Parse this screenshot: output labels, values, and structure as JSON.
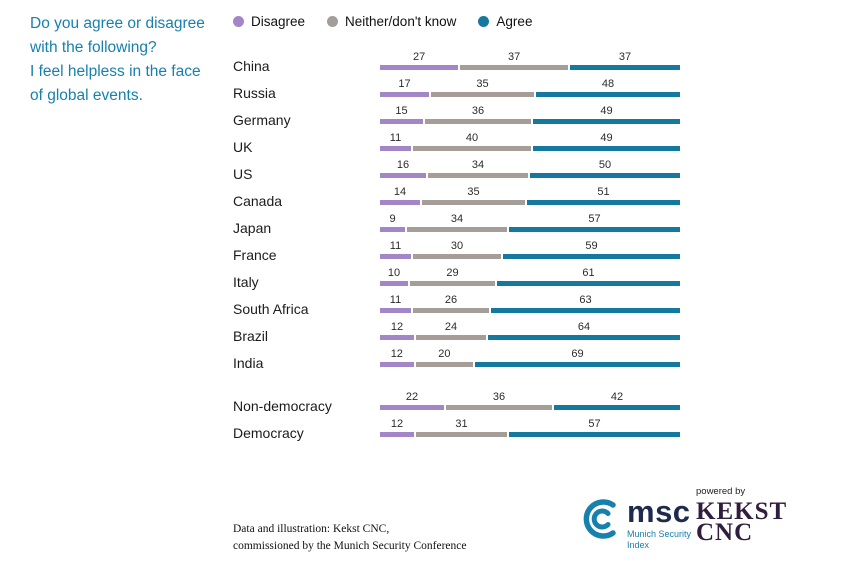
{
  "title": {
    "lines": [
      "Do you agree or disagree",
      "with the following?",
      "I feel helpless in the face",
      "of global events."
    ]
  },
  "legend": [
    {
      "label": "Disagree",
      "color": "#a286c8"
    },
    {
      "label": "Neither/don't know",
      "color": "#a59d97"
    },
    {
      "label": "Agree",
      "color": "#15789e"
    }
  ],
  "chart_data": {
    "type": "bar",
    "variant": "horizontal-stacked",
    "series_names": [
      "Disagree",
      "Neither/don't know",
      "Agree"
    ],
    "series_keys": [
      "disagree",
      "neither",
      "agree"
    ],
    "colors": [
      "#a286c8",
      "#a59d97",
      "#15789e"
    ],
    "xmax": 101,
    "rows": [
      {
        "label": "China",
        "values": [
          27,
          37,
          37
        ]
      },
      {
        "label": "Russia",
        "values": [
          17,
          35,
          48
        ]
      },
      {
        "label": "Germany",
        "values": [
          15,
          36,
          49
        ]
      },
      {
        "label": "UK",
        "values": [
          11,
          40,
          49
        ]
      },
      {
        "label": "US",
        "values": [
          16,
          34,
          50
        ]
      },
      {
        "label": "Canada",
        "values": [
          14,
          35,
          51
        ]
      },
      {
        "label": "Japan",
        "values": [
          9,
          34,
          57
        ]
      },
      {
        "label": "France",
        "values": [
          11,
          30,
          59
        ]
      },
      {
        "label": "Italy",
        "values": [
          10,
          29,
          61
        ]
      },
      {
        "label": "South Africa",
        "values": [
          11,
          26,
          63
        ]
      },
      {
        "label": "Brazil",
        "values": [
          12,
          24,
          64
        ]
      },
      {
        "label": "India",
        "values": [
          12,
          20,
          69
        ]
      },
      {
        "label": "Non-democracy",
        "values": [
          22,
          36,
          42
        ],
        "group_start": true
      },
      {
        "label": "Democracy",
        "values": [
          12,
          31,
          57
        ]
      }
    ]
  },
  "footer": {
    "lines": [
      "Data and illustration: Kekst CNC,",
      "commissioned by the Munich Security Conference"
    ]
  },
  "logos": {
    "msc": {
      "name": "msc",
      "sub_lines": [
        "Munich Security",
        "Index"
      ],
      "accent_color": "#1880ad"
    },
    "kekst": {
      "powered_by": "powered by",
      "lines": [
        "KEKST",
        "CNC"
      ]
    }
  }
}
